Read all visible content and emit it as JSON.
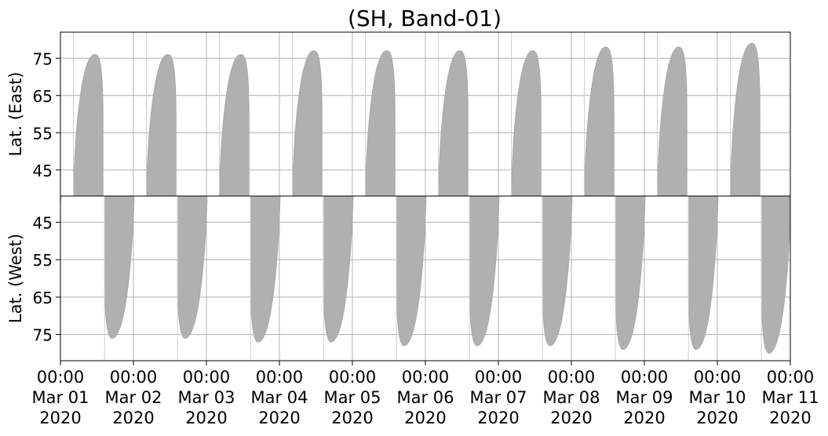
{
  "chart_data": {
    "type": "area",
    "title": "(SH, Band-01)",
    "x_range": [
      "2020-03-01T00:00",
      "2020-03-11T00:00"
    ],
    "x_tick_labels": [
      [
        "00:00",
        "Mar 01",
        "2020"
      ],
      [
        "00:00",
        "Mar 02",
        "2020"
      ],
      [
        "00:00",
        "Mar 03",
        "2020"
      ],
      [
        "00:00",
        "Mar 04",
        "2020"
      ],
      [
        "00:00",
        "Mar 05",
        "2020"
      ],
      [
        "00:00",
        "Mar 06",
        "2020"
      ],
      [
        "00:00",
        "Mar 07",
        "2020"
      ],
      [
        "00:00",
        "Mar 08",
        "2020"
      ],
      [
        "00:00",
        "Mar 09",
        "2020"
      ],
      [
        "00:00",
        "Mar 10",
        "2020"
      ],
      [
        "00:00",
        "Mar 11",
        "2020"
      ]
    ],
    "grid": true,
    "color": "#b0b0b0",
    "panels": [
      {
        "ylabel": "Lat. (East)",
        "ylim": [
          82,
          38
        ],
        "y_inverted": true,
        "yticks": [
          45,
          55,
          65,
          75
        ],
        "coverage_events": [
          {
            "start": "2020-03-01T04:15",
            "end": "2020-03-01T14:00",
            "lat_min": 38,
            "lat_max": 76
          },
          {
            "start": "2020-03-02T04:15",
            "end": "2020-03-02T14:00",
            "lat_min": 38,
            "lat_max": 76
          },
          {
            "start": "2020-03-03T04:15",
            "end": "2020-03-03T14:00",
            "lat_min": 38,
            "lat_max": 76
          },
          {
            "start": "2020-03-04T04:15",
            "end": "2020-03-04T14:00",
            "lat_min": 38,
            "lat_max": 77
          },
          {
            "start": "2020-03-05T04:15",
            "end": "2020-03-05T14:00",
            "lat_min": 38,
            "lat_max": 77
          },
          {
            "start": "2020-03-06T04:15",
            "end": "2020-03-06T14:00",
            "lat_min": 38,
            "lat_max": 77
          },
          {
            "start": "2020-03-07T04:15",
            "end": "2020-03-07T14:00",
            "lat_min": 38,
            "lat_max": 77
          },
          {
            "start": "2020-03-08T04:15",
            "end": "2020-03-08T14:00",
            "lat_min": 38,
            "lat_max": 78
          },
          {
            "start": "2020-03-09T04:15",
            "end": "2020-03-09T14:00",
            "lat_min": 38,
            "lat_max": 78
          },
          {
            "start": "2020-03-10T04:15",
            "end": "2020-03-10T14:00",
            "lat_min": 38,
            "lat_max": 79
          }
        ]
      },
      {
        "ylabel": "Lat. (West)",
        "ylim": [
          38,
          82
        ],
        "y_inverted": false,
        "yticks": [
          45,
          55,
          65,
          75
        ],
        "coverage_events": [
          {
            "start": "2020-02-29T14:30",
            "end": "2020-03-01T00:15",
            "lat_min": 38,
            "lat_max": 52
          },
          {
            "start": "2020-03-01T14:30",
            "end": "2020-03-02T00:15",
            "lat_min": 38,
            "lat_max": 76
          },
          {
            "start": "2020-03-02T14:30",
            "end": "2020-03-03T00:15",
            "lat_min": 38,
            "lat_max": 76
          },
          {
            "start": "2020-03-03T14:30",
            "end": "2020-03-04T00:15",
            "lat_min": 38,
            "lat_max": 77
          },
          {
            "start": "2020-03-04T14:30",
            "end": "2020-03-05T00:15",
            "lat_min": 38,
            "lat_max": 77
          },
          {
            "start": "2020-03-05T14:30",
            "end": "2020-03-06T00:15",
            "lat_min": 38,
            "lat_max": 78
          },
          {
            "start": "2020-03-06T14:30",
            "end": "2020-03-07T00:15",
            "lat_min": 38,
            "lat_max": 78
          },
          {
            "start": "2020-03-07T14:30",
            "end": "2020-03-08T00:15",
            "lat_min": 38,
            "lat_max": 78
          },
          {
            "start": "2020-03-08T14:30",
            "end": "2020-03-09T00:15",
            "lat_min": 38,
            "lat_max": 79
          },
          {
            "start": "2020-03-09T14:30",
            "end": "2020-03-10T00:15",
            "lat_min": 38,
            "lat_max": 79
          },
          {
            "start": "2020-03-10T14:30",
            "end": "2020-03-11T00:15",
            "lat_min": 38,
            "lat_max": 80
          }
        ]
      }
    ]
  }
}
